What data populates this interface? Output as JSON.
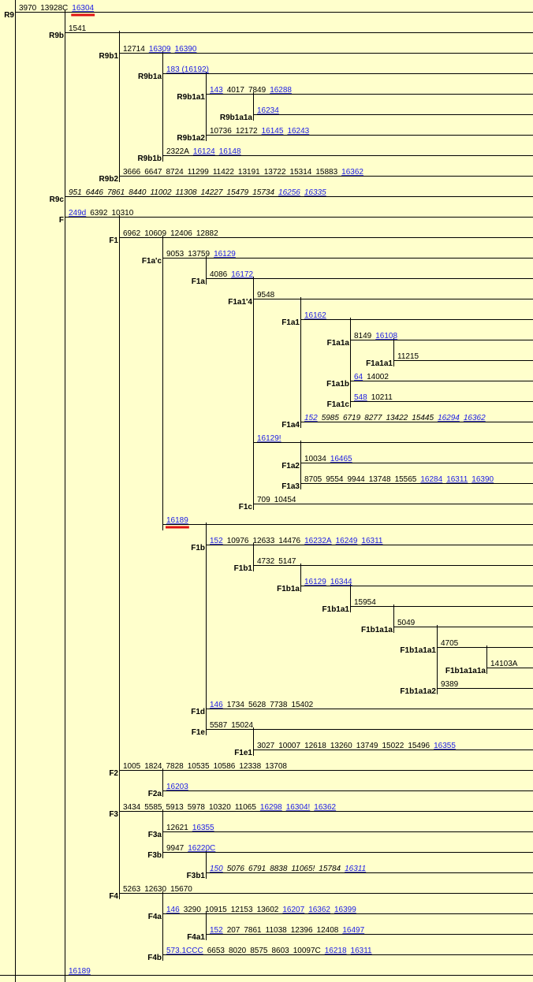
{
  "nodes": [
    {
      "id": "R9",
      "label": "R9",
      "parent": null,
      "muts": [
        [
          "3970",
          "k"
        ],
        [
          "13928C",
          "k"
        ],
        [
          "16304",
          "b"
        ]
      ]
    },
    {
      "id": "R9b",
      "label": "R9b",
      "parent": "R9",
      "muts": [
        [
          "1541",
          "k"
        ]
      ]
    },
    {
      "id": "R9b1",
      "label": "R9b1",
      "parent": "R9b",
      "muts": [
        [
          "12714",
          "k"
        ],
        [
          "16309",
          "b"
        ],
        [
          "16390",
          "b"
        ]
      ]
    },
    {
      "id": "R9b1a",
      "label": "R9b1a",
      "parent": "R9b1",
      "muts": [
        [
          "183 (16192)",
          "b"
        ]
      ]
    },
    {
      "id": "R9b1a1",
      "label": "R9b1a1",
      "parent": "R9b1a",
      "muts": [
        [
          "143",
          "b"
        ],
        [
          "4017",
          "k"
        ],
        [
          "7849",
          "k"
        ],
        [
          "16288",
          "b"
        ]
      ]
    },
    {
      "id": "R9b1a1a",
      "label": "R9b1a1a",
      "parent": "R9b1a1",
      "muts": [
        [
          "16234",
          "b"
        ]
      ]
    },
    {
      "id": "R9b1a2",
      "label": "R9b1a2",
      "parent": "R9b1a",
      "muts": [
        [
          "10736",
          "k"
        ],
        [
          "12172",
          "k"
        ],
        [
          "16145",
          "b"
        ],
        [
          "16243",
          "b"
        ]
      ]
    },
    {
      "id": "R9b1b",
      "label": "R9b1b",
      "parent": "R9b1",
      "muts": [
        [
          "2322A",
          "k"
        ],
        [
          "16124",
          "b"
        ],
        [
          "16148",
          "b"
        ]
      ]
    },
    {
      "id": "R9b2",
      "label": "R9b2",
      "parent": "R9b",
      "muts": [
        [
          "3666",
          "k"
        ],
        [
          "6647",
          "k"
        ],
        [
          "8724",
          "k"
        ],
        [
          "11299",
          "k"
        ],
        [
          "11422",
          "k"
        ],
        [
          "13191",
          "k"
        ],
        [
          "13722",
          "k"
        ],
        [
          "15314",
          "k"
        ],
        [
          "15883",
          "k"
        ],
        [
          "16362",
          "b"
        ]
      ]
    },
    {
      "id": "R9c",
      "label": "R9c",
      "parent": "R9",
      "muts": [
        [
          "951",
          "ki"
        ],
        [
          "6446",
          "ki"
        ],
        [
          "7861",
          "ki"
        ],
        [
          "8440",
          "ki"
        ],
        [
          "11002",
          "ki"
        ],
        [
          "11308",
          "ki"
        ],
        [
          "14227",
          "ki"
        ],
        [
          "15479",
          "ki"
        ],
        [
          "15734",
          "ki"
        ],
        [
          "16256",
          "bi"
        ],
        [
          "16335",
          "bi"
        ]
      ]
    },
    {
      "id": "F",
      "label": "F",
      "parent": "R9",
      "muts": [
        [
          "249d",
          "b"
        ],
        [
          "6392",
          "k"
        ],
        [
          "10310",
          "k"
        ]
      ]
    },
    {
      "id": "F1",
      "label": "F1",
      "parent": "F",
      "muts": [
        [
          "6962",
          "k"
        ],
        [
          "10609",
          "k"
        ],
        [
          "12406",
          "k"
        ],
        [
          "12882",
          "k"
        ]
      ]
    },
    {
      "id": "F1a'c",
      "label": "F1a'c",
      "parent": "F1",
      "muts": [
        [
          "9053",
          "k"
        ],
        [
          "13759",
          "k"
        ],
        [
          "16129",
          "b"
        ]
      ]
    },
    {
      "id": "F1a",
      "label": "F1a",
      "parent": "F1a'c",
      "muts": [
        [
          "4086",
          "k"
        ],
        [
          "16172",
          "b"
        ]
      ]
    },
    {
      "id": "F1a1'4",
      "label": "F1a1'4",
      "parent": "F1a",
      "muts": [
        [
          "9548",
          "k"
        ]
      ]
    },
    {
      "id": "F1a1",
      "label": "F1a1",
      "parent": "F1a1'4",
      "muts": [
        [
          "16162",
          "b"
        ]
      ]
    },
    {
      "id": "F1a1a",
      "label": "F1a1a",
      "parent": "F1a1",
      "muts": [
        [
          "8149",
          "k"
        ],
        [
          "16108",
          "b"
        ]
      ]
    },
    {
      "id": "F1a1a1",
      "label": "F1a1a1",
      "parent": "F1a1a",
      "muts": [
        [
          "11215",
          "k"
        ]
      ]
    },
    {
      "id": "F1a1b",
      "label": "F1a1b",
      "parent": "F1a1",
      "muts": [
        [
          "64",
          "b"
        ],
        [
          "14002",
          "k"
        ]
      ]
    },
    {
      "id": "F1a1c",
      "label": "F1a1c",
      "parent": "F1a1",
      "muts": [
        [
          "548",
          "b"
        ],
        [
          "10211",
          "k"
        ]
      ]
    },
    {
      "id": "F1a4",
      "label": "F1a4",
      "parent": "F1a1'4",
      "muts": [
        [
          "152",
          "bi"
        ],
        [
          "5985",
          "ki"
        ],
        [
          "6719",
          "ki"
        ],
        [
          "8277",
          "ki"
        ],
        [
          "13422",
          "ki"
        ],
        [
          "15445",
          "ki"
        ],
        [
          "16294",
          "bi"
        ],
        [
          "16362",
          "bi"
        ]
      ]
    },
    {
      "id": "F1a-x",
      "label": "",
      "parent": "F1a",
      "muts": [
        [
          "16129!",
          "b"
        ]
      ]
    },
    {
      "id": "F1a2",
      "label": "F1a2",
      "parent": "F1a-x",
      "muts": [
        [
          "10034",
          "k"
        ],
        [
          "16465",
          "b"
        ]
      ]
    },
    {
      "id": "F1a3",
      "label": "F1a3",
      "parent": "F1a-x",
      "muts": [
        [
          "8705",
          "k"
        ],
        [
          "9554",
          "k"
        ],
        [
          "9944",
          "k"
        ],
        [
          "13748",
          "k"
        ],
        [
          "15565",
          "k"
        ],
        [
          "16284",
          "b"
        ],
        [
          "16311",
          "b"
        ],
        [
          "16390",
          "b"
        ]
      ]
    },
    {
      "id": "F1c",
      "label": "F1c",
      "parent": "F1a",
      "muts": [
        [
          "709",
          "k"
        ],
        [
          "10454",
          "k"
        ]
      ]
    },
    {
      "id": "F1-x",
      "label": "",
      "parent": "F1",
      "muts": [
        [
          "16189",
          "b"
        ]
      ]
    },
    {
      "id": "F1b",
      "label": "F1b",
      "parent": "F1-x",
      "muts": [
        [
          "152",
          "b"
        ],
        [
          "10976",
          "k"
        ],
        [
          "12633",
          "k"
        ],
        [
          "14476",
          "k"
        ],
        [
          "16232A",
          "b"
        ],
        [
          "16249",
          "b"
        ],
        [
          "16311",
          "b"
        ]
      ]
    },
    {
      "id": "F1b1",
      "label": "F1b1",
      "parent": "F1b",
      "muts": [
        [
          "4732",
          "k"
        ],
        [
          "5147",
          "k"
        ]
      ]
    },
    {
      "id": "F1b1a",
      "label": "F1b1a",
      "parent": "F1b1",
      "muts": [
        [
          "16129",
          "b"
        ],
        [
          "16344",
          "b"
        ]
      ]
    },
    {
      "id": "F1b1a1",
      "label": "F1b1a1",
      "parent": "F1b1a",
      "muts": [
        [
          "15954",
          "k"
        ]
      ]
    },
    {
      "id": "F1b1a1a",
      "label": "F1b1a1a",
      "parent": "F1b1a1",
      "muts": [
        [
          "5049",
          "k"
        ]
      ]
    },
    {
      "id": "F1b1a1a1",
      "label": "F1b1a1a1",
      "parent": "F1b1a1a",
      "muts": [
        [
          "4705",
          "k"
        ]
      ]
    },
    {
      "id": "F1b1a1a1a",
      "label": "F1b1a1a1a",
      "parent": "F1b1a1a1",
      "muts": [
        [
          "14103A",
          "k"
        ]
      ]
    },
    {
      "id": "F1b1a1a2",
      "label": "F1b1a1a2",
      "parent": "F1b1a1a",
      "muts": [
        [
          "9389",
          "k"
        ]
      ]
    },
    {
      "id": "F1d",
      "label": "F1d",
      "parent": "F1-x",
      "muts": [
        [
          "146",
          "b"
        ],
        [
          "1734",
          "k"
        ],
        [
          "5628",
          "k"
        ],
        [
          "7738",
          "k"
        ],
        [
          "15402",
          "k"
        ]
      ]
    },
    {
      "id": "F1e",
      "label": "F1e",
      "parent": "F1-x",
      "muts": [
        [
          "5587",
          "k"
        ],
        [
          "15024",
          "k"
        ]
      ]
    },
    {
      "id": "F1e1",
      "label": "F1e1",
      "parent": "F1e",
      "muts": [
        [
          "3027",
          "k"
        ],
        [
          "10007",
          "k"
        ],
        [
          "12618",
          "k"
        ],
        [
          "13260",
          "k"
        ],
        [
          "13749",
          "k"
        ],
        [
          "15022",
          "k"
        ],
        [
          "15496",
          "k"
        ],
        [
          "16355",
          "b"
        ]
      ]
    },
    {
      "id": "F2",
      "label": "F2",
      "parent": "F",
      "muts": [
        [
          "1005",
          "k"
        ],
        [
          "1824",
          "k"
        ],
        [
          "7828",
          "k"
        ],
        [
          "10535",
          "k"
        ],
        [
          "10586",
          "k"
        ],
        [
          "12338",
          "k"
        ],
        [
          "13708",
          "k"
        ]
      ]
    },
    {
      "id": "F2a",
      "label": "F2a",
      "parent": "F2",
      "muts": [
        [
          "16203",
          "b"
        ]
      ]
    },
    {
      "id": "F3",
      "label": "F3",
      "parent": "F",
      "muts": [
        [
          "3434",
          "k"
        ],
        [
          "5585",
          "k"
        ],
        [
          "5913",
          "k"
        ],
        [
          "5978",
          "k"
        ],
        [
          "10320",
          "k"
        ],
        [
          "11065",
          "k"
        ],
        [
          "16298",
          "b"
        ],
        [
          "16304!",
          "b"
        ],
        [
          "16362",
          "b"
        ]
      ]
    },
    {
      "id": "F3a",
      "label": "F3a",
      "parent": "F3",
      "muts": [
        [
          "12621",
          "k"
        ],
        [
          "16355",
          "b"
        ]
      ]
    },
    {
      "id": "F3b",
      "label": "F3b",
      "parent": "F3",
      "muts": [
        [
          "9947",
          "k"
        ],
        [
          "16220C",
          "b"
        ]
      ]
    },
    {
      "id": "F3b1",
      "label": "F3b1",
      "parent": "F3b",
      "muts": [
        [
          "150",
          "bi"
        ],
        [
          "5076",
          "ki"
        ],
        [
          "6791",
          "ki"
        ],
        [
          "8838",
          "ki"
        ],
        [
          "11065!",
          "ki"
        ],
        [
          "15784",
          "ki"
        ],
        [
          "16311",
          "bi"
        ]
      ]
    },
    {
      "id": "F4",
      "label": "F4",
      "parent": "F",
      "muts": [
        [
          "5263",
          "k"
        ],
        [
          "12630",
          "k"
        ],
        [
          "15670",
          "k"
        ]
      ]
    },
    {
      "id": "F4a",
      "label": "F4a",
      "parent": "F4",
      "muts": [
        [
          "146",
          "b"
        ],
        [
          "3290",
          "k"
        ],
        [
          "10915",
          "k"
        ],
        [
          "12153",
          "k"
        ],
        [
          "13602",
          "k"
        ],
        [
          "16207",
          "b"
        ],
        [
          "16362",
          "b"
        ],
        [
          "16399",
          "b"
        ]
      ]
    },
    {
      "id": "F4a1",
      "label": "F4a1",
      "parent": "F4a",
      "muts": [
        [
          "152",
          "b"
        ],
        [
          "207",
          "k"
        ],
        [
          "7861",
          "k"
        ],
        [
          "11038",
          "k"
        ],
        [
          "12396",
          "k"
        ],
        [
          "12408",
          "k"
        ],
        [
          "16497",
          "b"
        ]
      ]
    },
    {
      "id": "F4b",
      "label": "F4b",
      "parent": "F4",
      "muts": [
        [
          "573.1CCC",
          "b"
        ],
        [
          "6653",
          "k"
        ],
        [
          "8020",
          "k"
        ],
        [
          "8575",
          "k"
        ],
        [
          "8603",
          "k"
        ],
        [
          "10097C",
          "k"
        ],
        [
          "16218",
          "b"
        ],
        [
          "16311",
          "b"
        ]
      ]
    },
    {
      "id": "R9-x",
      "label": "",
      "parent": "R9",
      "muts": [
        [
          "16189",
          "b"
        ]
      ]
    }
  ],
  "highlighted": [
    "R9:16304",
    "F1-x:16189"
  ],
  "colors": {
    "background": "#ffffcc",
    "line": "#000000",
    "mutation_blue": "#1a1ae6",
    "highlight": "#e01010"
  }
}
